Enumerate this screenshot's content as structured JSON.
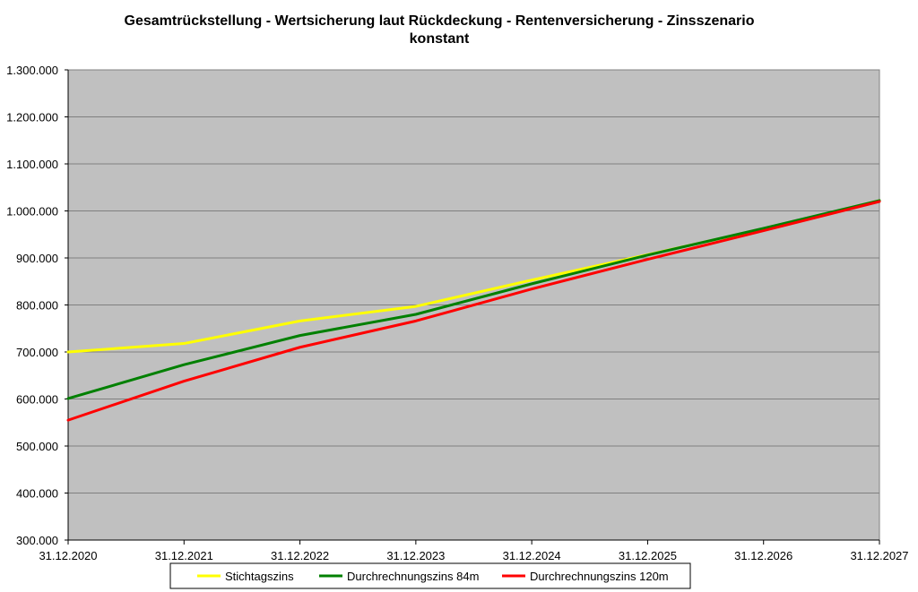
{
  "chart_data": {
    "type": "line",
    "title_line1": "Gesamtrückstellung - Wertsicherung laut Rückdeckung - Rentenversicherung - Zinsszenario",
    "title_line2": "konstant",
    "xlabel": "",
    "ylabel": "",
    "x": [
      "31.12.2020",
      "31.12.2021",
      "31.12.2022",
      "31.12.2023",
      "31.12.2024",
      "31.12.2025",
      "31.12.2026",
      "31.12.2027"
    ],
    "ylim": [
      300000,
      1300000
    ],
    "yticks": [
      300000,
      400000,
      500000,
      600000,
      700000,
      800000,
      900000,
      1000000,
      1100000,
      1200000,
      1300000
    ],
    "ytick_labels": [
      "300.000",
      "400.000",
      "500.000",
      "600.000",
      "700.000",
      "800.000",
      "900.000",
      "1.000.000",
      "1.100.000",
      "1.200.000",
      "1.300.000"
    ],
    "grid": true,
    "legend_position": "bottom",
    "plot_background": "#c0c0c0",
    "series": [
      {
        "name": "Stichtagszins",
        "color": "#ffff00",
        "values": [
          700000,
          718000,
          766000,
          797000,
          853000,
          907000,
          962000,
          1022000
        ]
      },
      {
        "name": "Durchrechnungszins 84m",
        "color": "#008000",
        "values": [
          601000,
          673000,
          735000,
          780000,
          845000,
          906000,
          963000,
          1022000
        ]
      },
      {
        "name": "Durchrechnungszins 120m",
        "color": "#ff0000",
        "values": [
          555000,
          638000,
          710000,
          766000,
          834000,
          897000,
          958000,
          1020000
        ]
      }
    ]
  }
}
